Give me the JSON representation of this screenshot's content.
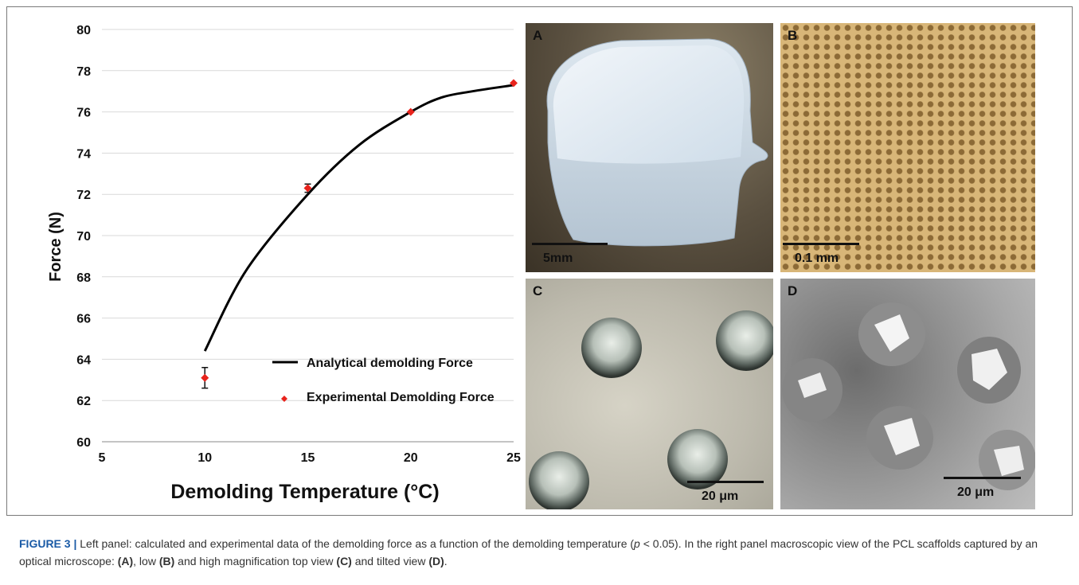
{
  "chart_data": {
    "type": "line",
    "xlabel": "Demolding Temperature (°C)",
    "ylabel": "Force (N)",
    "xlim": [
      5,
      25
    ],
    "ylim": [
      60,
      80
    ],
    "x_ticks": [
      "5",
      "10",
      "15",
      "20",
      "25"
    ],
    "y_ticks": [
      "60",
      "62",
      "64",
      "66",
      "68",
      "70",
      "72",
      "74",
      "76",
      "78",
      "80"
    ],
    "grid": "horizontal",
    "legend_position": "bottom-right",
    "series": [
      {
        "name": "Analytical demolding Force",
        "kind": "line",
        "color": "#000000",
        "x": [
          10,
          12,
          15,
          17.5,
          20,
          21.5,
          23,
          25
        ],
        "y": [
          64.4,
          68.3,
          72.0,
          74.4,
          76.0,
          76.7,
          77.0,
          77.3
        ]
      },
      {
        "name": "Experimental Demolding Force",
        "kind": "scatter",
        "color": "#e8231c",
        "x": [
          10,
          15,
          20,
          25
        ],
        "y": [
          63.1,
          72.3,
          76.0,
          77.4
        ],
        "error": [
          0.5,
          0.2,
          0.05,
          0.05
        ]
      }
    ]
  },
  "panels": {
    "a": {
      "letter": "A",
      "scale": "5mm"
    },
    "b": {
      "letter": "B",
      "scale": "0.1 mm"
    },
    "c": {
      "letter": "C",
      "scale": "20 μm"
    },
    "d": {
      "letter": "D",
      "scale": "20 μm"
    }
  },
  "caption": {
    "label": "FIGURE 3 |",
    "text1": " Left panel: calculated and experimental data of the demolding force as a function of the demolding temperature (",
    "p": "p",
    "text2": " < 0.05). In the right panel macroscopic view of the PCL scaffolds captured by an optical microscope: ",
    "ref_a": "(A)",
    "text3": ", low ",
    "ref_b": "(B)",
    "text4": " and high magnification top view ",
    "ref_c": "(C)",
    "text5": " and tilted view ",
    "ref_d": "(D)",
    "text6": "."
  },
  "colors": {
    "line": "#000000",
    "markers": "#e8231c",
    "grid": "#d9d9d9",
    "caption_label": "#1a5aa6"
  }
}
